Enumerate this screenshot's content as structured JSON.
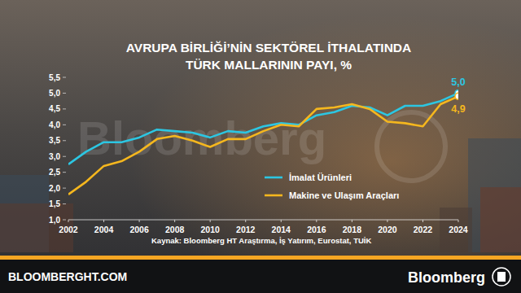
{
  "chart_data": {
    "type": "line",
    "title": [
      "AVRUPA BİRLİĞİ’NİN SEKTÖREL İTHALATINDA",
      "TÜRK MALLARININ PAYI, %"
    ],
    "source": "Kaynak: Bloomberg HT Araştırma, İş Yatırım, Eurostat, TUİK",
    "watermark": "Bloomberg",
    "footer": {
      "left": "BLOOMBERGHT.COM",
      "right": "Bloomberg"
    },
    "x": [
      2002,
      2003,
      2004,
      2005,
      2006,
      2007,
      2008,
      2009,
      2010,
      2011,
      2012,
      2013,
      2014,
      2015,
      2016,
      2017,
      2018,
      2019,
      2020,
      2021,
      2022,
      2023,
      2024
    ],
    "xlim": [
      2002,
      2024
    ],
    "xticks": [
      2002,
      2004,
      2006,
      2008,
      2010,
      2012,
      2014,
      2016,
      2018,
      2020,
      2022,
      2024
    ],
    "ylim": [
      1,
      5.5
    ],
    "yticks": [
      {
        "value": 1,
        "label": "1,0"
      },
      {
        "value": 1.5,
        "label": "1,5"
      },
      {
        "value": 2,
        "label": "2,0"
      },
      {
        "value": 2.5,
        "label": "2,5"
      },
      {
        "value": 3,
        "label": "3,0"
      },
      {
        "value": 3.5,
        "label": "3,5"
      },
      {
        "value": 4,
        "label": "4,0"
      },
      {
        "value": 4.5,
        "label": "4,5"
      },
      {
        "value": 5,
        "label": "5,0"
      },
      {
        "value": 5.5,
        "label": "5,5"
      }
    ],
    "grid": false,
    "legend": "lower right",
    "data_labels": true,
    "series": [
      {
        "name": "İmalat Ürünleri",
        "color": "#2cc6e2",
        "values": [
          2.75,
          3.15,
          3.45,
          3.45,
          3.6,
          3.85,
          3.8,
          3.75,
          3.6,
          3.8,
          3.75,
          3.95,
          4.05,
          4.0,
          4.3,
          4.4,
          4.6,
          4.55,
          4.3,
          4.6,
          4.6,
          4.75,
          5.0
        ],
        "value_labels": [
          null,
          null,
          null,
          null,
          null,
          null,
          null,
          null,
          null,
          null,
          null,
          null,
          null,
          null,
          null,
          null,
          null,
          null,
          null,
          null,
          null,
          null,
          "5,0"
        ]
      },
      {
        "name": "Makine ve Ulaşım Araçları",
        "color": "#f5b71e",
        "values": [
          1.8,
          2.2,
          2.7,
          2.85,
          3.15,
          3.55,
          3.65,
          3.5,
          3.3,
          3.55,
          3.55,
          3.8,
          4.0,
          3.95,
          4.5,
          4.55,
          4.65,
          4.5,
          4.1,
          4.05,
          3.95,
          4.65,
          4.9
        ],
        "value_labels": [
          null,
          null,
          null,
          null,
          null,
          null,
          null,
          null,
          null,
          null,
          null,
          null,
          null,
          null,
          null,
          null,
          null,
          null,
          null,
          null,
          null,
          null,
          "4,9"
        ]
      }
    ]
  }
}
